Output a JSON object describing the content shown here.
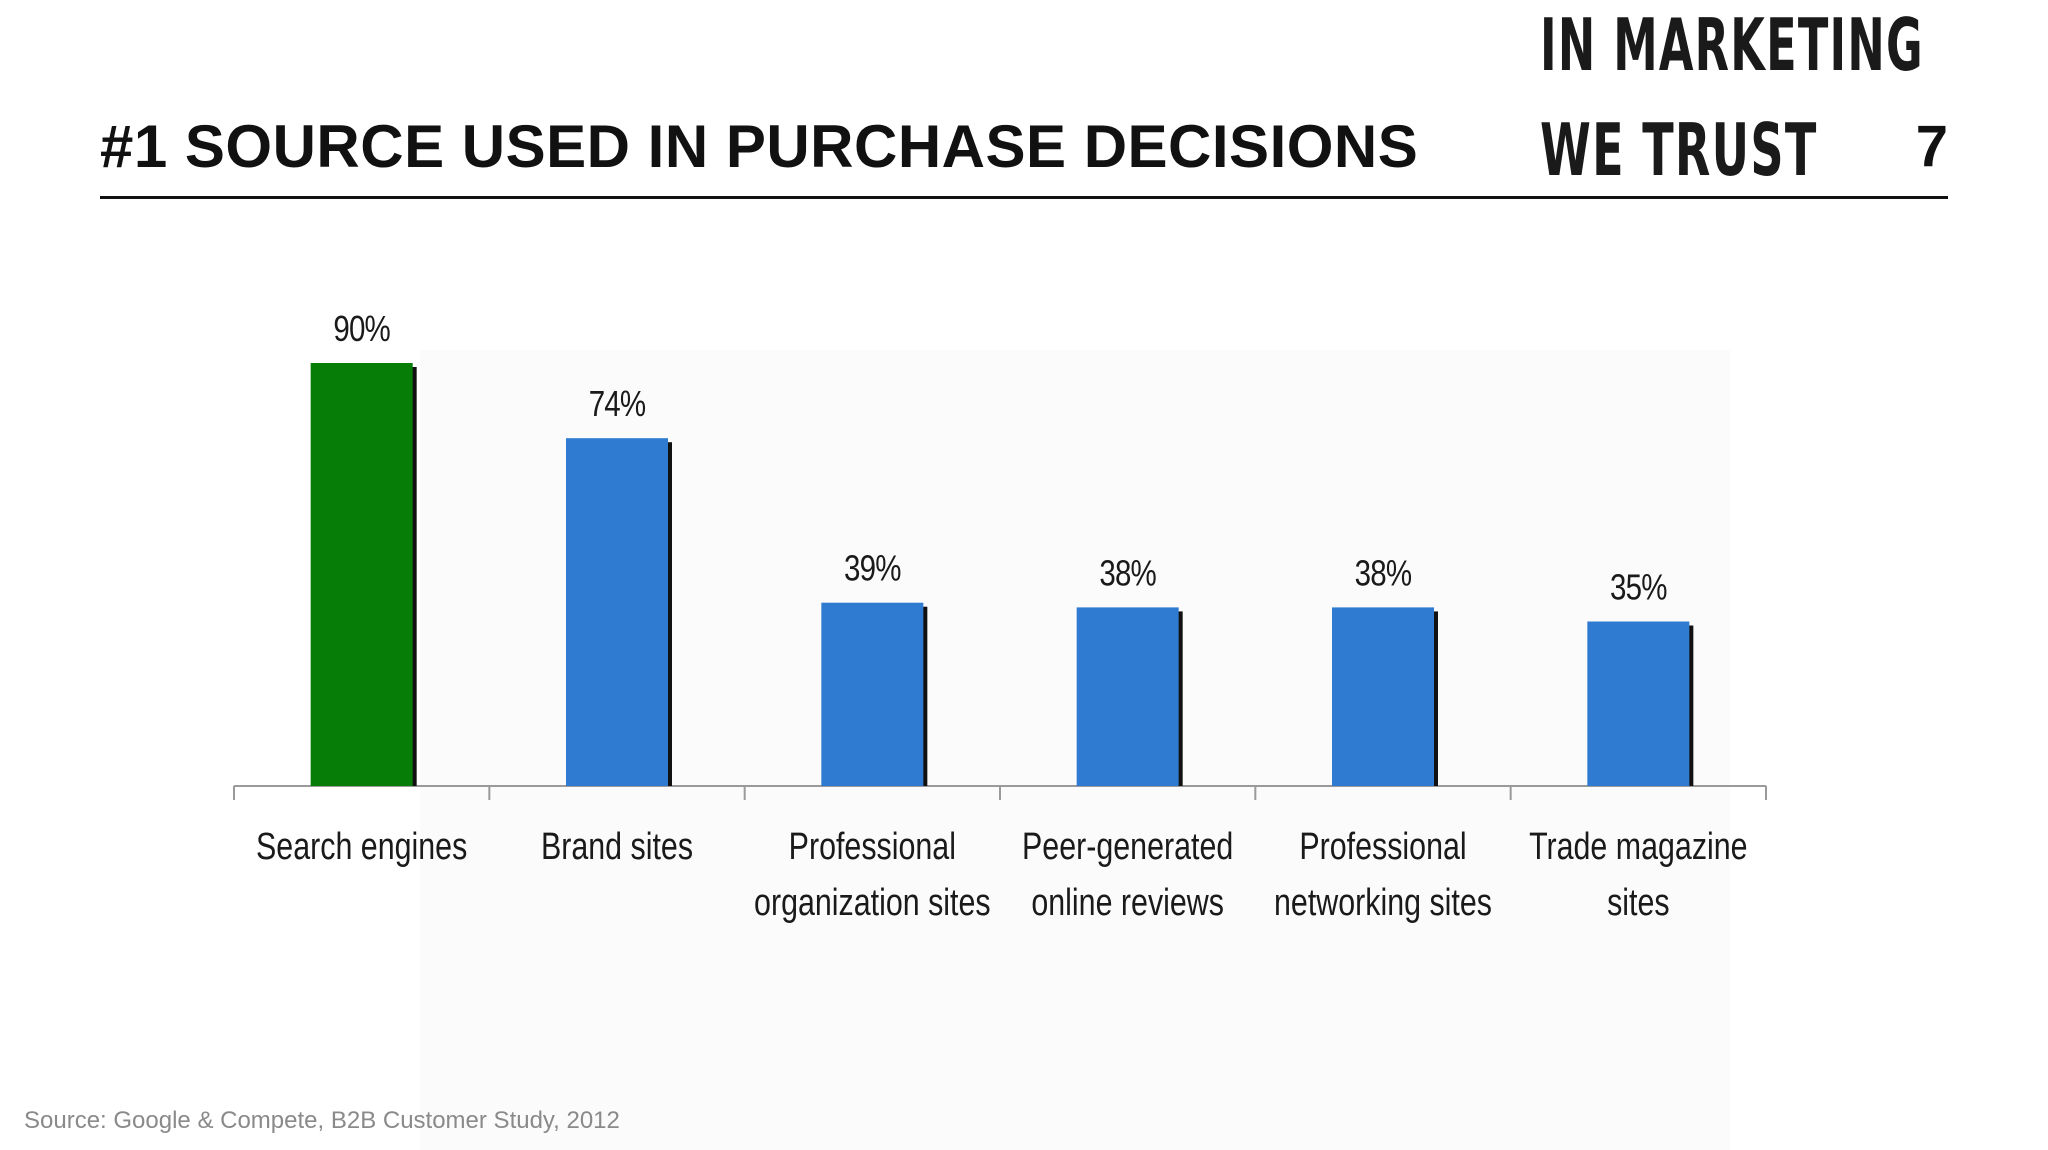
{
  "slide": {
    "title": "#1 SOURCE USED IN PURCHASE DECISIONS",
    "logo_line_1": "IN MARKETING",
    "logo_line_2": "WE TRUST",
    "page_number": "7",
    "source": "Source: Google & Compete, B2B Customer Study, 2012"
  },
  "chart_data": {
    "type": "bar",
    "title": "",
    "xlabel": "",
    "ylabel": "",
    "ylim": [
      0,
      100
    ],
    "grid": false,
    "legend": "none",
    "categories": [
      [
        "Search engines"
      ],
      [
        "Brand sites"
      ],
      [
        "Professional",
        "organization sites"
      ],
      [
        "Peer-generated",
        "online reviews"
      ],
      [
        "Professional",
        "networking sites"
      ],
      [
        "Trade magazine",
        "sites"
      ]
    ],
    "values": [
      90,
      74,
      39,
      38,
      38,
      35
    ],
    "data_labels": [
      "90%",
      "74%",
      "39%",
      "38%",
      "38%",
      "35%"
    ],
    "colors": [
      "#067d06",
      "#2e7bd1",
      "#2e7bd1",
      "#2e7bd1",
      "#2e7bd1",
      "#2e7bd1"
    ],
    "shadow_color": "#111111",
    "axis_color": "#9a9a9a"
  }
}
